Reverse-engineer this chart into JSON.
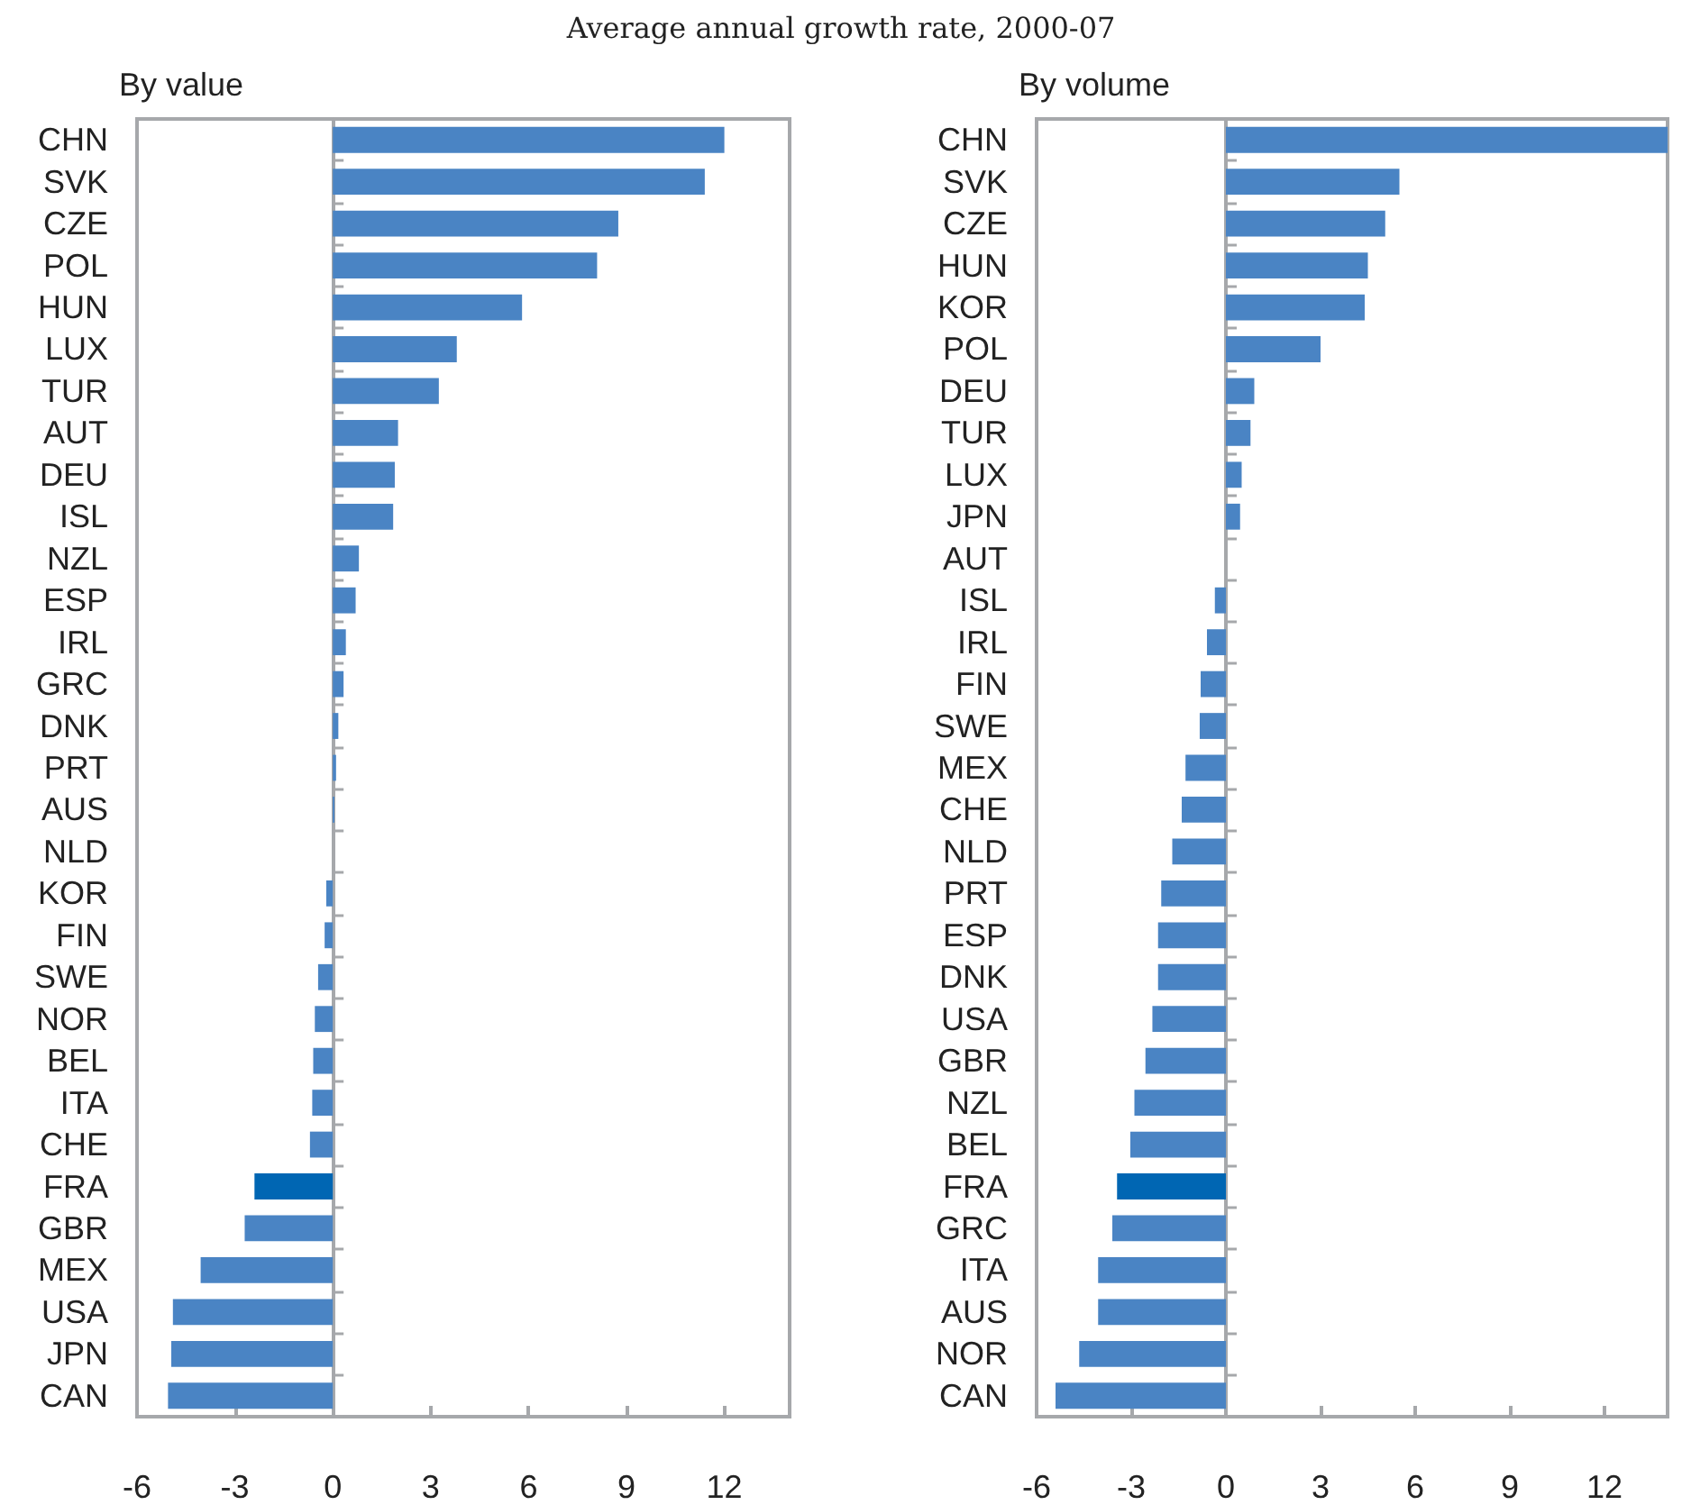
{
  "chart_data": [
    {
      "type": "bar",
      "orientation": "horizontal",
      "title": "By value",
      "annotations": [
        "Average annual growth rate, 2000-07"
      ],
      "categories": [
        "CHN",
        "SVK",
        "CZE",
        "POL",
        "HUN",
        "LUX",
        "TUR",
        "AUT",
        "DEU",
        "ISL",
        "NZL",
        "ESP",
        "IRL",
        "GRC",
        "DNK",
        "PRT",
        "AUS",
        "NLD",
        "KOR",
        "FIN",
        "SWE",
        "NOR",
        "BEL",
        "ITA",
        "CHE",
        "FRA",
        "GBR",
        "MEX",
        "USA",
        "JPN",
        "CAN"
      ],
      "values": [
        12.0,
        11.4,
        8.75,
        8.1,
        5.8,
        3.8,
        3.25,
        2.0,
        1.9,
        1.85,
        0.8,
        0.7,
        0.4,
        0.33,
        0.17,
        0.1,
        0.05,
        0,
        -0.2,
        -0.25,
        -0.45,
        -0.55,
        -0.6,
        -0.63,
        -0.7,
        -2.4,
        -2.7,
        -4.05,
        -4.9,
        -4.95,
        -5.05
      ],
      "colors": [
        "#4a84c4",
        "#4a84c4",
        "#4a84c4",
        "#4a84c4",
        "#4a84c4",
        "#4a84c4",
        "#4a84c4",
        "#4a84c4",
        "#4a84c4",
        "#4a84c4",
        "#4a84c4",
        "#4a84c4",
        "#4a84c4",
        "#4a84c4",
        "#4a84c4",
        "#4a84c4",
        "#4a84c4",
        "#4a84c4",
        "#4a84c4",
        "#4a84c4",
        "#4a84c4",
        "#4a84c4",
        "#4a84c4",
        "#4a84c4",
        "#4a84c4",
        "#0066b3",
        "#4a84c4",
        "#4a84c4",
        "#4a84c4",
        "#4a84c4",
        "#4a84c4"
      ],
      "xlim": [
        -6,
        14
      ],
      "xticks": [
        -6,
        -3,
        0,
        3,
        6,
        9,
        12
      ]
    },
    {
      "type": "bar",
      "orientation": "horizontal",
      "title": "By volume",
      "categories": [
        "CHN",
        "SVK",
        "CZE",
        "HUN",
        "KOR",
        "POL",
        "DEU",
        "TUR",
        "LUX",
        "JPN",
        "AUT",
        "ISL",
        "IRL",
        "FIN",
        "SWE",
        "MEX",
        "CHE",
        "NLD",
        "PRT",
        "ESP",
        "DNK",
        "USA",
        "GBR",
        "NZL",
        "BEL",
        "FRA",
        "GRC",
        "ITA",
        "AUS",
        "NOR",
        "CAN"
      ],
      "values": [
        14,
        5.5,
        5.05,
        4.5,
        4.4,
        3.0,
        0.9,
        0.78,
        0.5,
        0.45,
        0,
        -0.35,
        -0.6,
        -0.8,
        -0.83,
        -1.28,
        -1.4,
        -1.7,
        -2.05,
        -2.15,
        -2.15,
        -2.33,
        -2.55,
        -2.9,
        -3.03,
        -3.45,
        -3.6,
        -4.05,
        -4.05,
        -4.65,
        -5.4
      ],
      "colors": [
        "#4a84c4",
        "#4a84c4",
        "#4a84c4",
        "#4a84c4",
        "#4a84c4",
        "#4a84c4",
        "#4a84c4",
        "#4a84c4",
        "#4a84c4",
        "#4a84c4",
        "#4a84c4",
        "#4a84c4",
        "#4a84c4",
        "#4a84c4",
        "#4a84c4",
        "#4a84c4",
        "#4a84c4",
        "#4a84c4",
        "#4a84c4",
        "#4a84c4",
        "#4a84c4",
        "#4a84c4",
        "#4a84c4",
        "#4a84c4",
        "#4a84c4",
        "#0066b3",
        "#4a84c4",
        "#4a84c4",
        "#4a84c4",
        "#4a84c4",
        "#4a84c4"
      ],
      "xlim": [
        -6,
        14
      ],
      "xticks": [
        -6,
        -3,
        0,
        3,
        6,
        9,
        12
      ]
    }
  ]
}
